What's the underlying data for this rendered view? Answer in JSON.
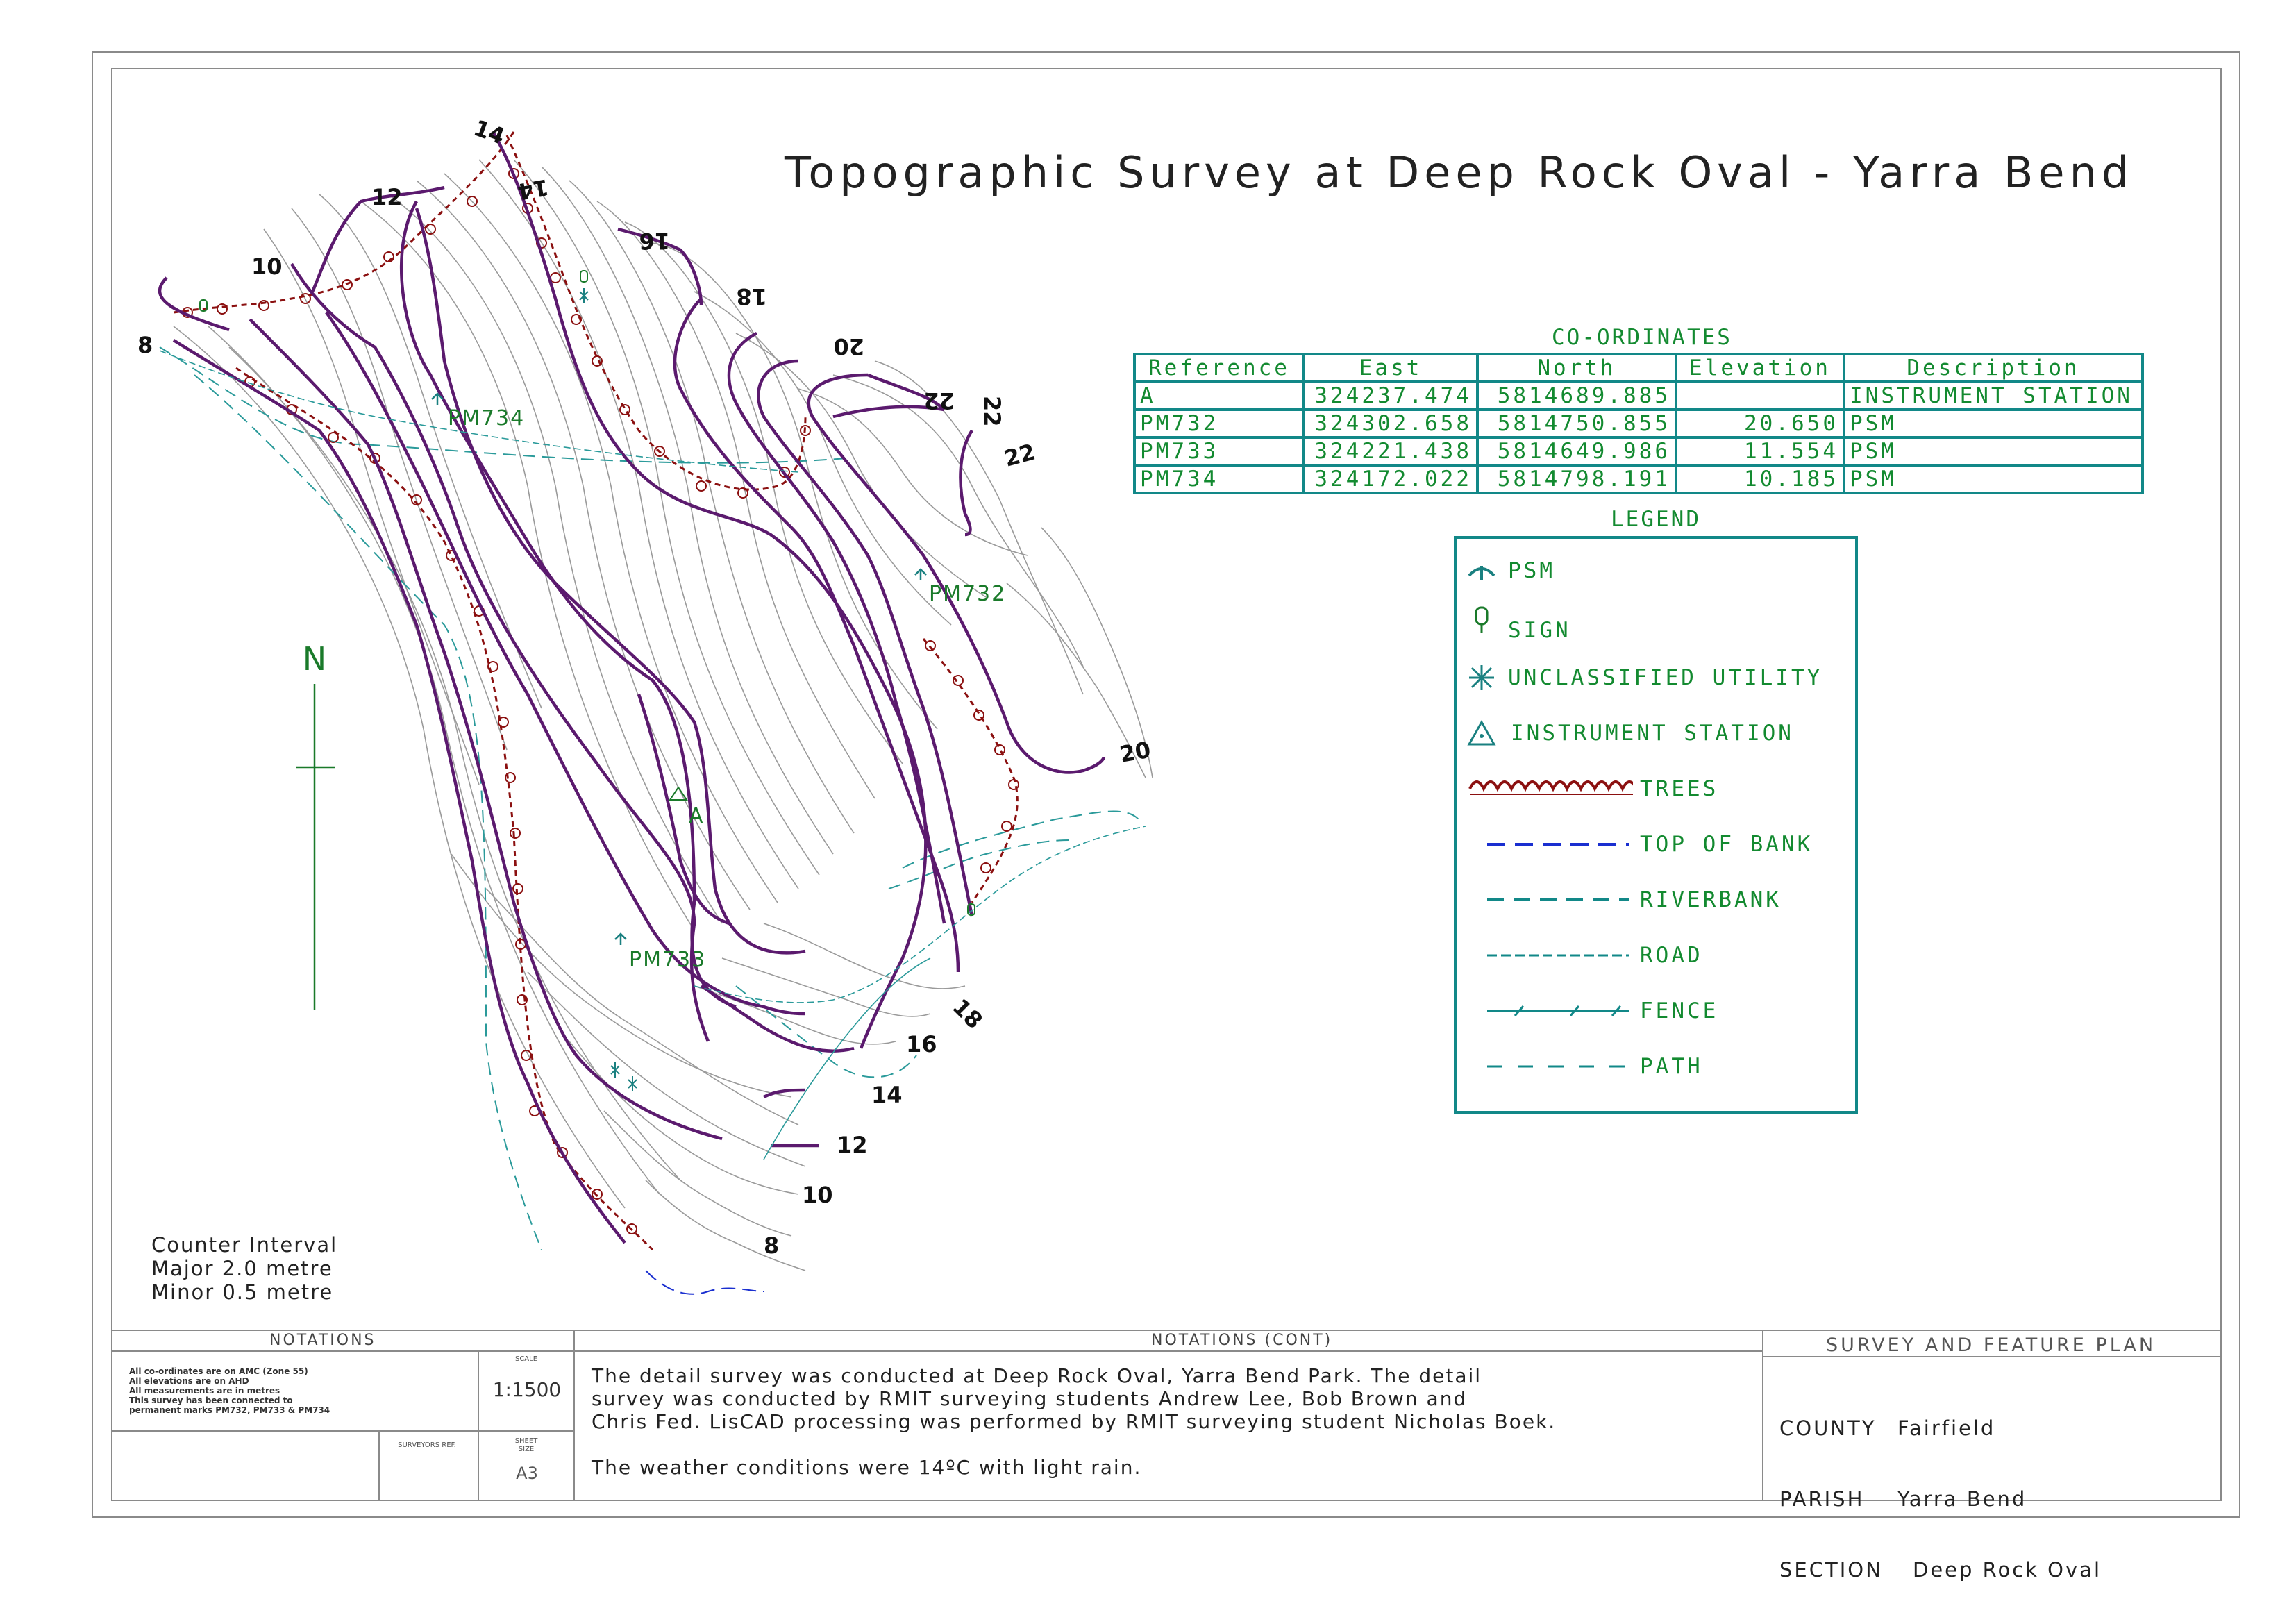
{
  "title": "Topographic Survey at Deep Rock Oval - Yarra Bend",
  "map": {
    "north_label": "N",
    "contour_labels": [
      "14",
      "12",
      "10",
      "8",
      "14",
      "16",
      "18",
      "20",
      "22",
      "22",
      "22",
      "20",
      "18",
      "16",
      "14",
      "12",
      "10",
      "8"
    ],
    "stations": {
      "pm734": "PM734",
      "pm732": "PM732",
      "pm733": "PM733",
      "a": "A"
    }
  },
  "coordinates": {
    "title": "CO-ORDINATES",
    "headers": [
      "Reference",
      "East",
      "North",
      "Elevation",
      "Description"
    ],
    "rows": [
      {
        "reference": "A",
        "east": "324237.474",
        "north": "5814689.885",
        "elevation": "",
        "description": "INSTRUMENT STATION"
      },
      {
        "reference": "PM732",
        "east": "324302.658",
        "north": "5814750.855",
        "elevation": "20.650",
        "description": "PSM"
      },
      {
        "reference": "PM733",
        "east": "324221.438",
        "north": "5814649.986",
        "elevation": "11.554",
        "description": "PSM"
      },
      {
        "reference": "PM734",
        "east": "324172.022",
        "north": "5814798.191",
        "elevation": "10.185",
        "description": "PSM"
      }
    ]
  },
  "legend": {
    "title": "LEGEND",
    "items": [
      "PSM",
      "SIGN",
      "UNCLASSIFIED UTILITY",
      "INSTRUMENT STATION",
      "TREES",
      "TOP OF BANK",
      "RIVERBANK",
      "ROAD",
      "FENCE",
      "PATH"
    ]
  },
  "contour_interval": {
    "line1": "Counter Interval",
    "line2": "Major 2.0 metre",
    "line3": "Minor 0.5 metre"
  },
  "notations": {
    "header": "NOTATIONS",
    "lines": [
      "All co-ordinates are on AMC (Zone 55)",
      "All elevations are on AHD",
      "All measurements are in metres",
      "This survey has been connected to",
      "permanent marks PM732, PM733 & PM734"
    ],
    "scale_caption": "SCALE",
    "scale": "1:1500",
    "surveyors_ref_caption": "SURVEYORS REF.",
    "sheet_size_caption": "SHEET\nSIZE",
    "sheet_size": "A3"
  },
  "notations_cont": {
    "header": "NOTATIONS (CONT)",
    "line1": "The detail survey was conducted at Deep Rock Oval, Yarra Bend Park. The detail",
    "line2": "survey was conducted by RMIT surveying students Andrew Lee, Bob Brown and",
    "line3": "Chris Fed. LisCAD processing was performed by RMIT surveying student Nicholas Boek.",
    "line4": "The weather conditions were 14ºC with light rain."
  },
  "plan": {
    "title": "SURVEY AND FEATURE PLAN",
    "county_label": "COUNTY",
    "county": "Fairfield",
    "parish_label": "PARISH",
    "parish": "Yarra Bend",
    "section_label": "SECTION",
    "section": "Deep Rock Oval"
  },
  "colors": {
    "major_contour": "#5b1a6e",
    "minor_contour": "#9a9a9a",
    "feature_green": "#138a30",
    "table_teal": "#128888",
    "trees": "#8b1010",
    "top_of_bank": "#1a2fd0"
  }
}
